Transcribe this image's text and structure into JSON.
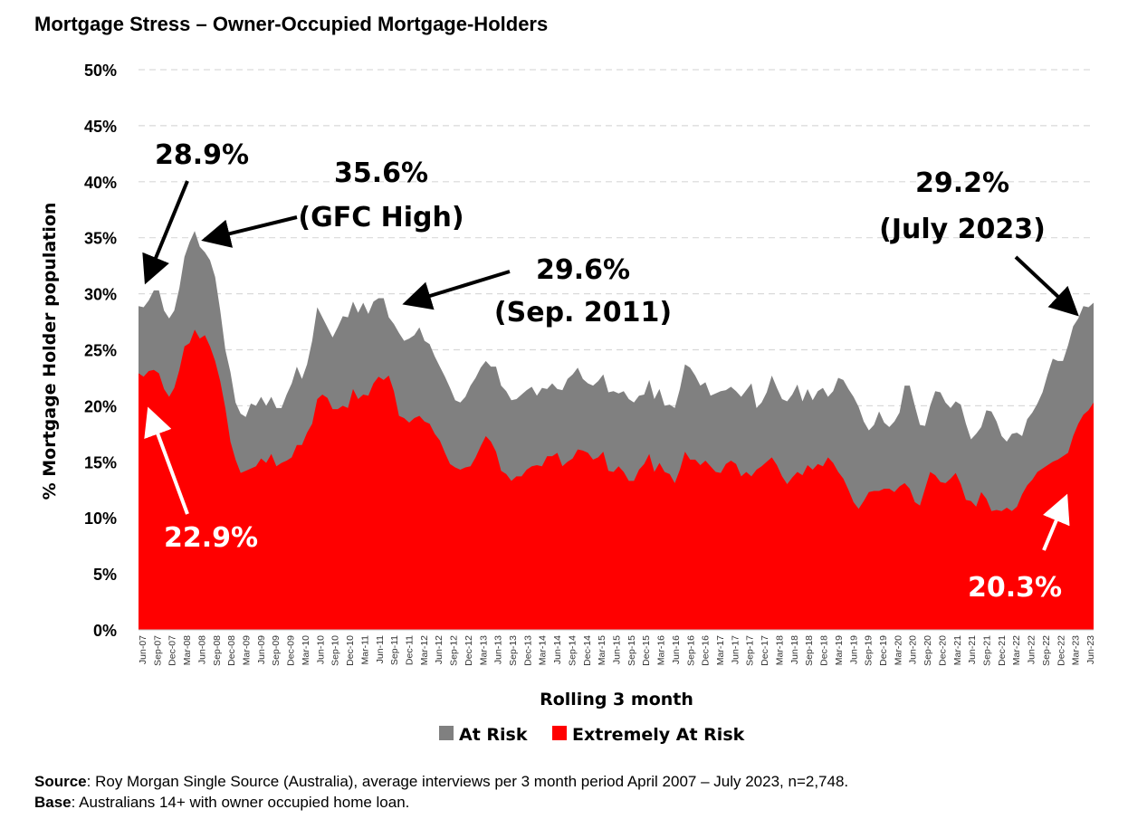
{
  "title": "Mortgage Stress – Owner-Occupied Mortgage-Holders",
  "footer": {
    "source_label": "Source",
    "source_text": ": Roy Morgan Single Source (Australia), average interviews per 3 month period April 2007 – July 2023, n=2,748.",
    "base_label": "Base",
    "base_text": ": Australians 14+ with owner occupied home loan."
  },
  "colors": {
    "at_risk": "#808080",
    "extremely_at_risk": "#ff0000",
    "grid": "#d9d9d9"
  },
  "chart_data": {
    "type": "area",
    "stacked": false,
    "xlabel": "Rolling 3 month",
    "ylabel": "% Mortgage Holder population",
    "ylim": [
      0,
      50
    ],
    "yticks": [
      "0%",
      "5%",
      "10%",
      "15%",
      "20%",
      "25%",
      "30%",
      "35%",
      "40%",
      "45%",
      "50%"
    ],
    "grid": "horizontal dashed",
    "legend_position": "bottom",
    "x_tick_labels": [
      "Jun-07",
      "Sep-07",
      "Dec-07",
      "Mar-08",
      "Jun-08",
      "Sep-08",
      "Dec-08",
      "Mar-09",
      "Jun-09",
      "Sep-09",
      "Dec-09",
      "Mar-10",
      "Jun-10",
      "Sep-10",
      "Dec-10",
      "Mar-11",
      "Jun-11",
      "Sep-11",
      "Dec-11",
      "Mar-12",
      "Jun-12",
      "Sep-12",
      "Dec-12",
      "Mar-13",
      "Jun-13",
      "Sep-13",
      "Dec-13",
      "Mar-14",
      "Jun-14",
      "Sep-14",
      "Dec-14",
      "Mar-15",
      "Jun-15",
      "Sep-15",
      "Dec-15",
      "Mar-16",
      "Jun-16",
      "Sep-16",
      "Dec-16",
      "Mar-17",
      "Jun-17",
      "Sep-17",
      "Dec-17",
      "Mar-18",
      "Jun-18",
      "Sep-18",
      "Dec-18",
      "Mar-19",
      "Jun-19",
      "Sep-19",
      "Dec-19",
      "Mar-20",
      "Jun-20",
      "Sep-20",
      "Dec-20",
      "Mar-21",
      "Jun-21",
      "Sep-21",
      "Dec-21",
      "Mar-22",
      "Jun-22",
      "Sep-22",
      "Dec-22",
      "Mar-23",
      "Jun-23"
    ],
    "series": [
      {
        "name": "At Risk",
        "color": "#808080",
        "values": [
          28.9,
          28.8,
          29.4,
          30.3,
          30.3,
          28.5,
          27.8,
          28.5,
          30.5,
          33.3,
          34.6,
          35.6,
          34.2,
          33.7,
          33.0,
          31.5,
          28.5,
          25.0,
          23.0,
          20.3,
          19.3,
          19.0,
          20.2,
          20.0,
          20.8,
          20.0,
          20.8,
          19.8,
          19.8,
          21.0,
          22.0,
          23.5,
          22.4,
          23.7,
          25.8,
          28.8,
          27.9,
          27.0,
          26.1,
          27.0,
          28.0,
          27.9,
          29.3,
          28.3,
          29.2,
          28.2,
          29.3,
          29.6,
          29.6,
          27.9,
          27.3,
          26.5,
          25.8,
          26.0,
          26.3,
          27.0,
          25.8,
          25.5,
          24.4,
          23.5,
          22.6,
          21.6,
          20.5,
          20.3,
          20.8,
          21.8,
          22.5,
          23.4,
          24.0,
          23.5,
          23.5,
          21.8,
          21.3,
          20.5,
          20.6,
          21.0,
          21.4,
          21.7,
          20.9,
          21.6,
          21.5,
          22.0,
          21.5,
          21.4,
          22.4,
          22.8,
          23.4,
          22.4,
          22.0,
          21.8,
          22.2,
          22.8,
          21.2,
          21.3,
          21.1,
          21.3,
          20.6,
          20.3,
          20.9,
          21.0,
          22.3,
          20.6,
          21.5,
          20.0,
          20.1,
          19.8,
          21.5,
          23.7,
          23.4,
          22.7,
          21.8,
          22.1,
          20.9,
          21.1,
          21.3,
          21.4,
          21.7,
          21.3,
          20.8,
          21.4,
          22.0,
          19.8,
          20.3,
          21.2,
          22.7,
          21.6,
          20.6,
          20.4,
          21.0,
          21.9,
          20.4,
          21.5,
          20.5,
          21.3,
          21.6,
          20.8,
          21.3,
          22.5,
          22.3,
          21.5,
          20.8,
          19.9,
          18.6,
          17.8,
          18.3,
          19.5,
          18.5,
          18.1,
          18.6,
          19.4,
          21.8,
          21.8,
          20.0,
          18.3,
          18.2,
          20.0,
          21.3,
          21.2,
          20.3,
          19.8,
          20.4,
          20.1,
          18.4,
          17.0,
          17.5,
          18.1,
          19.6,
          19.5,
          18.6,
          17.3,
          16.8,
          17.5,
          17.6,
          17.3,
          18.8,
          19.4,
          20.2,
          21.2,
          22.8,
          24.2,
          24.0,
          24.0,
          25.4,
          27.1,
          27.8,
          28.9,
          28.8,
          29.2
        ]
      },
      {
        "name": "Extremely At Risk",
        "color": "#ff0000",
        "values": [
          22.9,
          22.6,
          23.1,
          23.2,
          22.9,
          21.5,
          20.8,
          21.6,
          23.2,
          25.3,
          25.6,
          26.8,
          26.0,
          26.3,
          25.3,
          24.0,
          22.2,
          19.8,
          16.8,
          15.2,
          14.0,
          14.2,
          14.4,
          14.6,
          15.3,
          14.9,
          15.7,
          14.6,
          14.9,
          15.1,
          15.4,
          16.5,
          16.5,
          17.6,
          18.4,
          20.6,
          21.0,
          20.7,
          19.7,
          19.7,
          20.0,
          19.8,
          21.5,
          20.6,
          21.0,
          20.9,
          22.0,
          22.6,
          22.3,
          22.7,
          21.3,
          19.1,
          18.9,
          18.5,
          18.9,
          19.1,
          18.6,
          18.4,
          17.5,
          16.9,
          15.8,
          14.8,
          14.5,
          14.3,
          14.5,
          14.6,
          15.4,
          16.4,
          17.3,
          16.8,
          15.9,
          14.2,
          13.9,
          13.3,
          13.7,
          13.7,
          14.3,
          14.6,
          14.7,
          14.6,
          15.5,
          15.5,
          15.8,
          14.6,
          15.0,
          15.3,
          16.1,
          16.0,
          15.8,
          15.2,
          15.4,
          15.9,
          14.2,
          14.1,
          14.6,
          14.1,
          13.3,
          13.3,
          14.3,
          14.8,
          15.7,
          14.1,
          14.9,
          14.1,
          13.9,
          13.1,
          14.3,
          15.9,
          15.2,
          15.2,
          14.7,
          15.1,
          14.6,
          14.1,
          14.0,
          14.8,
          15.1,
          14.8,
          13.7,
          14.1,
          13.7,
          14.3,
          14.6,
          15.0,
          15.4,
          14.7,
          13.7,
          13.0,
          13.6,
          14.1,
          13.8,
          14.7,
          14.3,
          14.8,
          14.6,
          15.4,
          14.9,
          14.1,
          13.5,
          12.5,
          11.4,
          10.8,
          11.5,
          12.3,
          12.4,
          12.4,
          12.6,
          12.6,
          12.3,
          12.8,
          13.1,
          12.6,
          11.4,
          11.1,
          12.6,
          14.1,
          13.8,
          13.2,
          13.1,
          13.5,
          14.0,
          13.0,
          11.6,
          11.5,
          11.0,
          12.3,
          11.7,
          10.6,
          10.7,
          10.6,
          10.9,
          10.6,
          11.0,
          12.1,
          12.9,
          13.4,
          14.1,
          14.4,
          14.7,
          15.0,
          15.2,
          15.5,
          15.8,
          17.3,
          18.4,
          19.2,
          19.6,
          20.3
        ]
      }
    ],
    "annotations": [
      {
        "text": "28.9%",
        "color": "#000000"
      },
      {
        "text": "35.6%",
        "color": "#000000"
      },
      {
        "text": "(GFC High)",
        "color": "#000000"
      },
      {
        "text": "29.6%",
        "color": "#000000"
      },
      {
        "text": "(Sep. 2011)",
        "color": "#000000"
      },
      {
        "text": "29.2%",
        "color": "#000000"
      },
      {
        "text": "(July 2023)",
        "color": "#000000"
      },
      {
        "text": "22.9%",
        "color": "#ffffff"
      },
      {
        "text": "20.3%",
        "color": "#ffffff"
      }
    ]
  }
}
